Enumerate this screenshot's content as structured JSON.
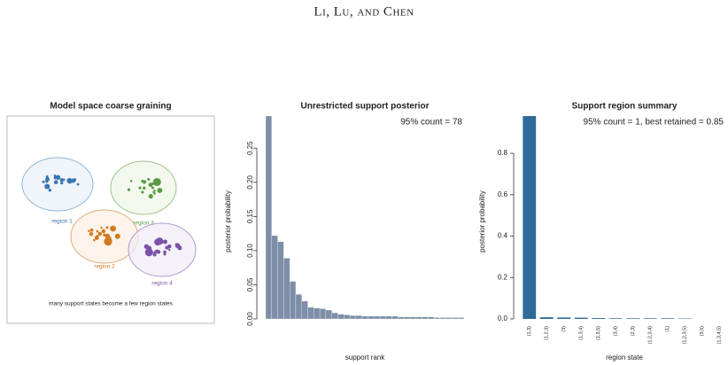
{
  "header": {
    "running_head": "Li, Lu, and Chen"
  },
  "panel_a": {
    "title": "Model space coarse graining",
    "regions": [
      "region 1",
      "region 2",
      "region 3",
      "region 4"
    ],
    "caption": "many support states become a few region states"
  },
  "chart_data": [
    {
      "type": "bar",
      "title": "Unrestricted support posterior",
      "annotation": "95% count = 78",
      "y_label": "posterior probability",
      "x_label": "support rank",
      "color": "#7d8ea8",
      "values": [
        0.297,
        0.122,
        0.113,
        0.089,
        0.055,
        0.036,
        0.026,
        0.017,
        0.016,
        0.015,
        0.013,
        0.009,
        0.007,
        0.006,
        0.005,
        0.005,
        0.004,
        0.004,
        0.004,
        0.004,
        0.004,
        0.004,
        0.003,
        0.003,
        0.003,
        0.003,
        0.003,
        0.003,
        0.002,
        0.002,
        0.002,
        0.002,
        0.002
      ],
      "ylim": [
        0,
        0.297
      ],
      "yticks": [
        {
          "value": 0,
          "label": "0.00"
        },
        {
          "value": 0.05,
          "label": "0.05"
        },
        {
          "value": 0.1,
          "label": "0.10"
        },
        {
          "value": 0.15,
          "label": "0.15"
        },
        {
          "value": 0.2,
          "label": "0.20"
        },
        {
          "value": 0.25,
          "label": "0.25"
        }
      ]
    },
    {
      "type": "bar",
      "title": "Support region summary",
      "annotation": "95% count = 1, best retained = 0.85",
      "y_label": "posterior probability",
      "x_label": "region state",
      "color": "#2f6a9b",
      "categories": [
        "(1,3)",
        "(1,2,3)",
        "(3)",
        "(1,3,4)",
        "(1,3,5)",
        "(3,4)",
        "(2,3)",
        "(1,2,3,4)",
        "(1)",
        "(1,2,3,5)",
        "(3,5)",
        "(1,3,4,5)"
      ],
      "values": [
        0.98,
        0.008,
        0.007,
        0.006,
        0.004,
        0.003,
        0.003,
        0.003,
        0.003,
        0.002,
        0,
        0
      ],
      "ylim": [
        0,
        0.98
      ],
      "yticks": [
        {
          "value": 0,
          "label": "0.0"
        },
        0.2,
        0.4,
        0.6,
        0.8
      ]
    }
  ]
}
